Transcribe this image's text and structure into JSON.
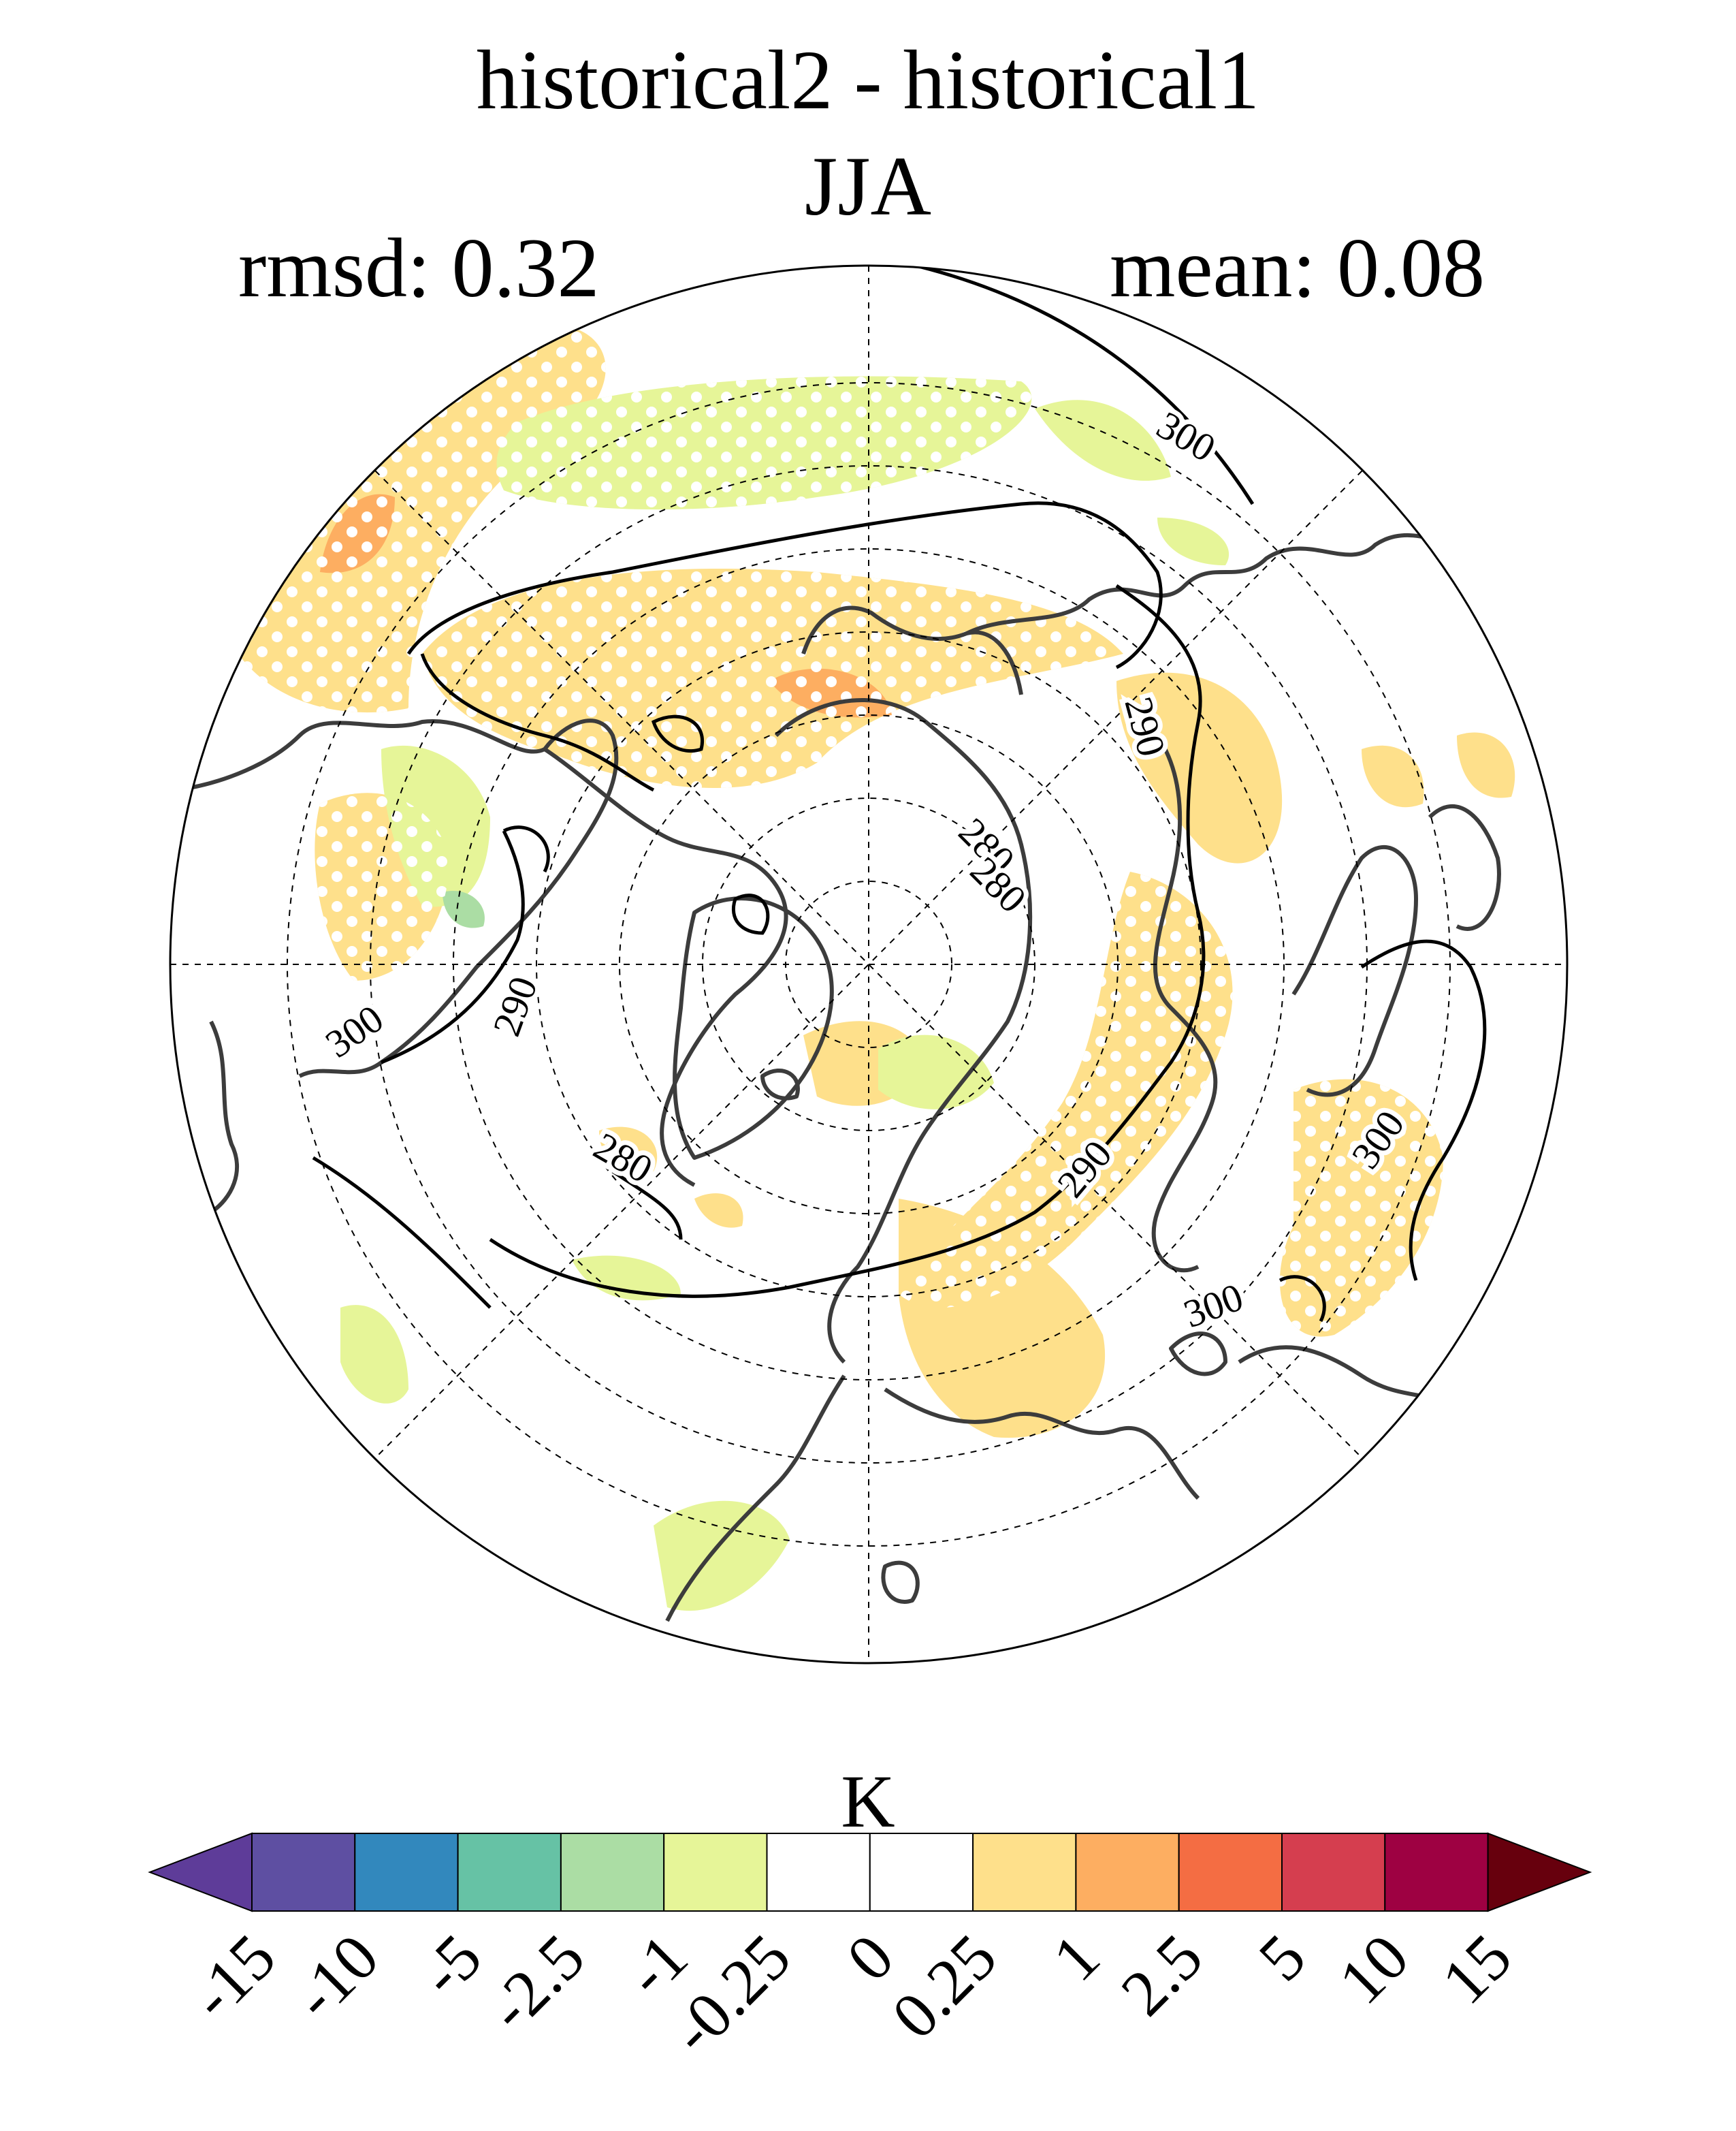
{
  "title": "historical2 - historical1",
  "season": "JJA",
  "rmsd_label": "rmsd: 0.32",
  "mean_label": "mean: 0.08",
  "colorbar": {
    "units": "K",
    "levels": [
      "-15",
      "-10",
      "-5",
      "-2.5",
      "-1",
      "-0.25",
      "0",
      "0.25",
      "1",
      "2.5",
      "5",
      "10",
      "15"
    ],
    "colors": [
      "#5e3c99",
      "#5e4fa2",
      "#3288bd",
      "#66c2a5",
      "#abdda4",
      "#e6f598",
      "#ffffff",
      "#ffffff",
      "#fee08b",
      "#fdae61",
      "#f46d43",
      "#d53e4f",
      "#9e0142",
      "#67000d"
    ]
  },
  "contour_labels": [
    "300",
    "290",
    "280",
    "280",
    "290",
    "300",
    "300",
    "290",
    "280",
    "300"
  ]
}
